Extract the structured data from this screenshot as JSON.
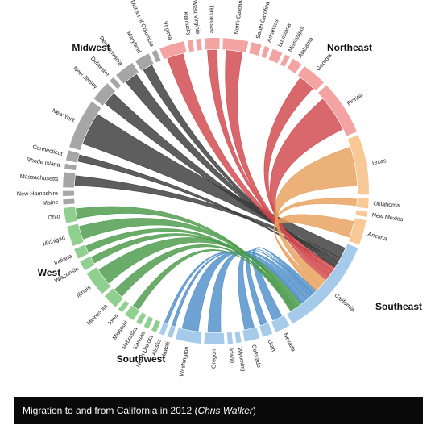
{
  "regions": [
    {
      "key": "midwest",
      "name": "Midwest",
      "color": "#8fcf8f",
      "chord": "#4a9a4a"
    },
    {
      "key": "northeast",
      "name": "Northeast",
      "color": "#a6a6a6",
      "chord": "#3a3a3a"
    },
    {
      "key": "southeast",
      "name": "Southeast",
      "color": "#f4a3a3",
      "chord": "#d0474b"
    },
    {
      "key": "southwest",
      "name": "Southwest",
      "color": "#f8c996",
      "chord": "#e8a05a"
    },
    {
      "key": "west",
      "name": "West",
      "color": "#a6cbea",
      "chord": "#4f8fc9"
    }
  ],
  "states": [
    {
      "name": "Maine",
      "region": "northeast",
      "weight": 1
    },
    {
      "name": "New Hampshire",
      "region": "northeast",
      "weight": 1
    },
    {
      "name": "Massachusetts",
      "region": "northeast",
      "weight": 3
    },
    {
      "name": "Rhode Island",
      "region": "northeast",
      "weight": 1
    },
    {
      "name": "Connecticut",
      "region": "northeast",
      "weight": 2
    },
    {
      "name": "New York",
      "region": "northeast",
      "weight": 10
    },
    {
      "name": "New Jersey",
      "region": "northeast",
      "weight": 4
    },
    {
      "name": "Delaware",
      "region": "northeast",
      "weight": 1
    },
    {
      "name": "Pennsylvania",
      "region": "northeast",
      "weight": 4
    },
    {
      "name": "Maryland",
      "region": "northeast",
      "weight": 3
    },
    {
      "name": "District of Columbia",
      "region": "northeast",
      "weight": 1
    },
    {
      "name": "Virginia",
      "region": "southeast",
      "weight": 5
    },
    {
      "name": "Kentucky",
      "region": "southeast",
      "weight": 1
    },
    {
      "name": "West Virginia",
      "region": "southeast",
      "weight": 1
    },
    {
      "name": "Tennessee",
      "region": "southeast",
      "weight": 3
    },
    {
      "name": "North Carolina",
      "region": "southeast",
      "weight": 5
    },
    {
      "name": "South Carolina",
      "region": "southeast",
      "weight": 2
    },
    {
      "name": "Arkansas",
      "region": "southeast",
      "weight": 1
    },
    {
      "name": "Louisiana",
      "region": "southeast",
      "weight": 2
    },
    {
      "name": "Mississippi",
      "region": "southeast",
      "weight": 1
    },
    {
      "name": "Alabama",
      "region": "southeast",
      "weight": 2
    },
    {
      "name": "Georgia",
      "region": "southeast",
      "weight": 5
    },
    {
      "name": "Florida",
      "region": "southeast",
      "weight": 11
    },
    {
      "name": "Texas",
      "region": "southwest",
      "weight": 12
    },
    {
      "name": "Oklahoma",
      "region": "southwest",
      "weight": 2
    },
    {
      "name": "New Mexico",
      "region": "southwest",
      "weight": 1
    },
    {
      "name": "Arizona",
      "region": "southwest",
      "weight": 5
    },
    {
      "name": "California",
      "region": "west",
      "weight": 20
    },
    {
      "name": "Nevada",
      "region": "west",
      "weight": 3
    },
    {
      "name": "Utah",
      "region": "west",
      "weight": 2
    },
    {
      "name": "Colorado",
      "region": "west",
      "weight": 3
    },
    {
      "name": "Wyoming",
      "region": "west",
      "weight": 1
    },
    {
      "name": "Idaho",
      "region": "west",
      "weight": 1
    },
    {
      "name": "Oregon",
      "region": "west",
      "weight": 4
    },
    {
      "name": "Washington",
      "region": "west",
      "weight": 5
    },
    {
      "name": "Hawaii",
      "region": "west",
      "weight": 1
    },
    {
      "name": "Alaska",
      "region": "west",
      "weight": 1
    },
    {
      "name": "North Dakota",
      "region": "midwest",
      "weight": 1
    },
    {
      "name": "Kansas",
      "region": "midwest",
      "weight": 1
    },
    {
      "name": "Nebraska",
      "region": "midwest",
      "weight": 1
    },
    {
      "name": "Missouri",
      "region": "midwest",
      "weight": 2
    },
    {
      "name": "Iowa",
      "region": "midwest",
      "weight": 1
    },
    {
      "name": "Minnesota",
      "region": "midwest",
      "weight": 3
    },
    {
      "name": "Illinois",
      "region": "midwest",
      "weight": 5
    },
    {
      "name": "Wisconsin",
      "region": "midwest",
      "weight": 2
    },
    {
      "name": "Indiana",
      "region": "midwest",
      "weight": 2
    },
    {
      "name": "Michigan",
      "region": "midwest",
      "weight": 4
    },
    {
      "name": "Ohio",
      "region": "midwest",
      "weight": 3
    }
  ],
  "flows": [
    {
      "state": "New York",
      "value": 9
    },
    {
      "state": "Massachusetts",
      "value": 3
    },
    {
      "state": "New Jersey",
      "value": 2
    },
    {
      "state": "Pennsylvania",
      "value": 2
    },
    {
      "state": "Maryland",
      "value": 1
    },
    {
      "state": "Connecticut",
      "value": 1
    },
    {
      "state": "Virginia",
      "value": 3
    },
    {
      "state": "Tennessee",
      "value": 1
    },
    {
      "state": "North Carolina",
      "value": 2
    },
    {
      "state": "Georgia",
      "value": 2
    },
    {
      "state": "Florida",
      "value": 4
    },
    {
      "state": "Texas",
      "value": 7
    },
    {
      "state": "Arizona",
      "value": 4
    },
    {
      "state": "Oklahoma",
      "value": 1
    },
    {
      "state": "Nevada",
      "value": 3
    },
    {
      "state": "Utah",
      "value": 1
    },
    {
      "state": "Colorado",
      "value": 2
    },
    {
      "state": "Oregon",
      "value": 4
    },
    {
      "state": "Washington",
      "value": 4
    },
    {
      "state": "Hawaii",
      "value": 1
    },
    {
      "state": "Alaska",
      "value": 1
    },
    {
      "state": "Illinois",
      "value": 3
    },
    {
      "state": "Michigan",
      "value": 2
    },
    {
      "state": "Ohio",
      "value": 1
    },
    {
      "state": "Minnesota",
      "value": 1
    },
    {
      "state": "Wisconsin",
      "value": 1
    },
    {
      "state": "Indiana",
      "value": 1
    },
    {
      "state": "Missouri",
      "value": 1
    }
  ],
  "caption": {
    "text": "Migration to and from California in 2012 (",
    "author": "Chris Walker",
    "close": ")"
  }
}
